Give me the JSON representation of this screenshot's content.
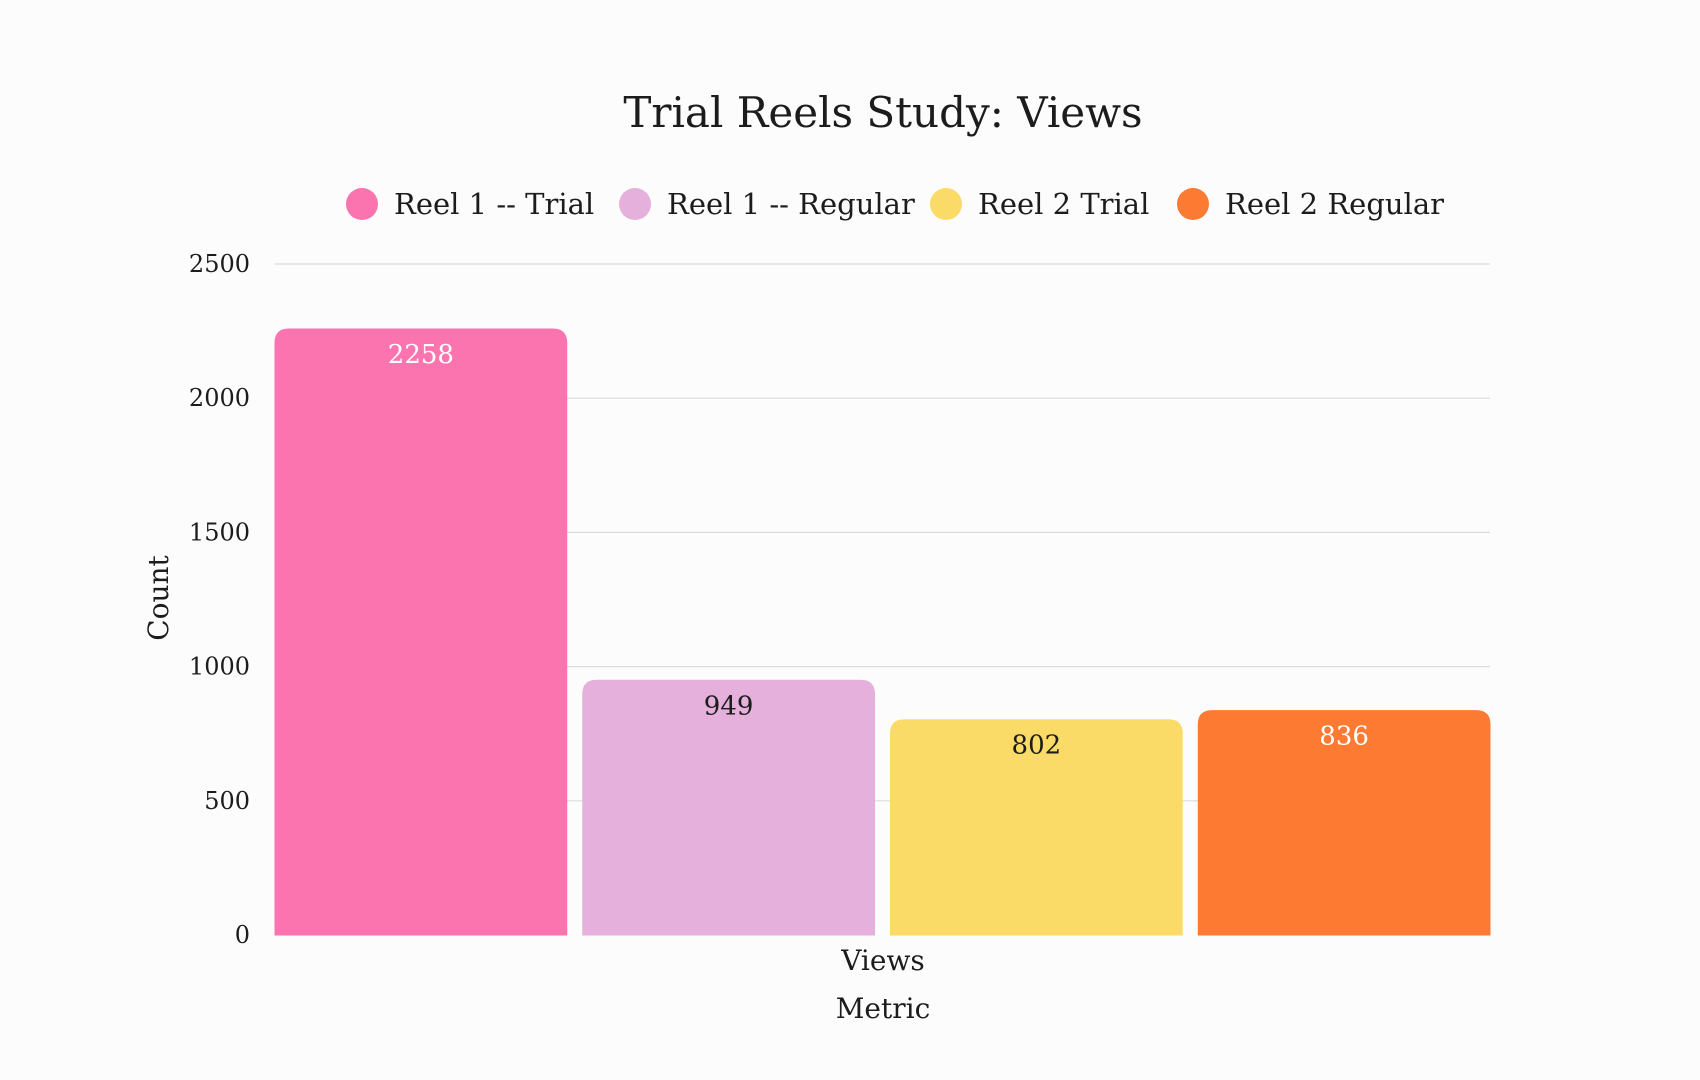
{
  "chart_data": {
    "type": "bar",
    "title": "Trial Reels Study: Views",
    "xlabel": "Metric",
    "ylabel": "Count",
    "categories": [
      "Views"
    ],
    "series": [
      {
        "name": "Reel 1 -- Trial",
        "values": [
          2258
        ],
        "color": "#fb74b0",
        "label_color": "#ffffff"
      },
      {
        "name": "Reel 1 -- Regular",
        "values": [
          949
        ],
        "color": "#e6b0dc",
        "label_color": "#1c1c1c"
      },
      {
        "name": "Reel 2 Trial",
        "values": [
          802
        ],
        "color": "#fbdb67",
        "label_color": "#1c1c1c"
      },
      {
        "name": "Reel 2 Regular",
        "values": [
          836
        ],
        "color": "#fd7a32",
        "label_color": "#ffffff"
      }
    ],
    "ylim": [
      0,
      2500
    ],
    "yticks": [
      0,
      500,
      1000,
      1500,
      2000,
      2500
    ],
    "grid": true,
    "legend_position": "top"
  }
}
